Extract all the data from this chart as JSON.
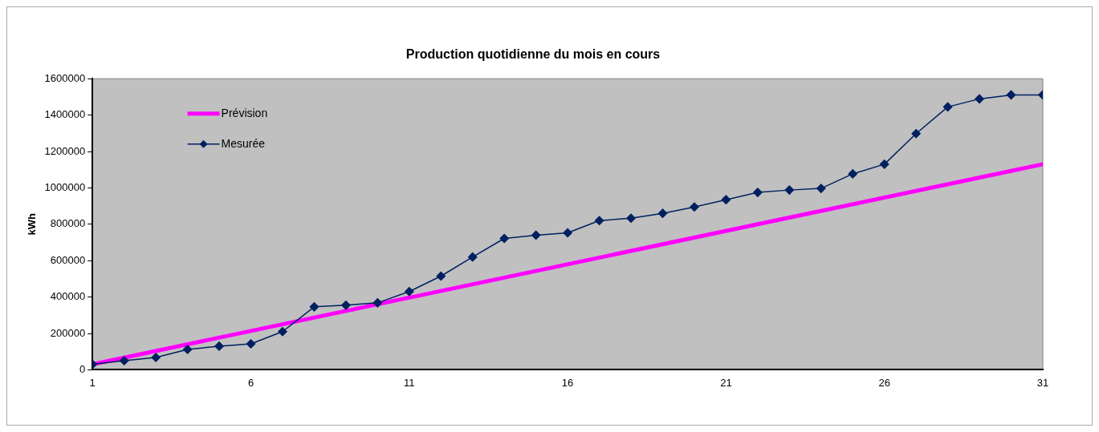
{
  "chart_data": {
    "type": "line",
    "title": "Production quotidienne du mois en cours",
    "ylabel": "kWh",
    "x": [
      1,
      2,
      3,
      4,
      5,
      6,
      7,
      8,
      9,
      10,
      11,
      12,
      13,
      14,
      15,
      16,
      17,
      18,
      19,
      20,
      21,
      22,
      23,
      24,
      25,
      26,
      27,
      28,
      29,
      30,
      31
    ],
    "series": [
      {
        "name": "Prévision",
        "color": "#ff00ff",
        "x": [
          1,
          31
        ],
        "values": [
          30000,
          1130000
        ],
        "marker": "none"
      },
      {
        "name": "Mesurée",
        "color": "#002060",
        "marker": "diamond",
        "values": [
          30000,
          50000,
          68000,
          112000,
          130000,
          143000,
          210000,
          346000,
          355000,
          368000,
          430000,
          515000,
          620000,
          722000,
          740000,
          753000,
          820000,
          833000,
          860000,
          895000,
          935000,
          975000,
          988000,
          997000,
          1077000,
          1130000,
          1298000,
          1445000,
          1489000,
          1511000,
          1511000
        ]
      }
    ],
    "xlim": [
      1,
      31
    ],
    "xticks": [
      1,
      6,
      11,
      16,
      21,
      26,
      31
    ],
    "ylim": [
      0,
      1600000
    ],
    "yticks": [
      0,
      200000,
      400000,
      600000,
      800000,
      1000000,
      1200000,
      1400000,
      1600000
    ],
    "grid": false,
    "legend": "top left",
    "line_style": "solid"
  }
}
